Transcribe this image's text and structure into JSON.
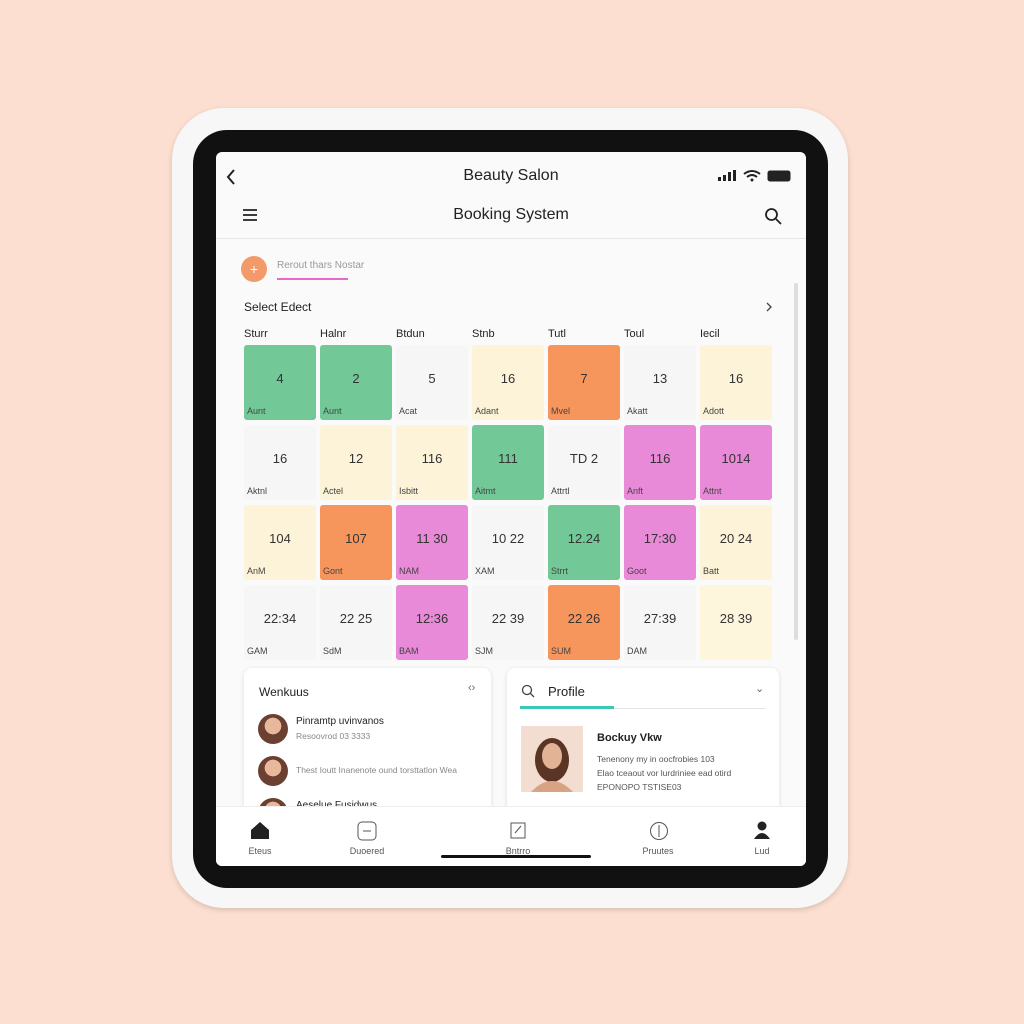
{
  "status_bar": {
    "title": "Beauty Salon"
  },
  "header": {
    "title": "Booking System"
  },
  "search": {
    "placeholder": "Rerout thars Nostar"
  },
  "calendar": {
    "title": "Select Edect",
    "columns": [
      "Sturr",
      "Halnr",
      "Btdun",
      "Stnb",
      "Tutl",
      "Toul",
      "Iecil"
    ],
    "rows": [
      [
        {
          "value": "4",
          "label": "Aunt",
          "color": "#72c896"
        },
        {
          "value": "2",
          "label": "Aunt",
          "color": "#72c896"
        },
        {
          "value": "5",
          "label": "Acat",
          "color": "#f6f6f6"
        },
        {
          "value": "16",
          "label": "Adant",
          "color": "#fdf3d8"
        },
        {
          "value": "7",
          "label": "Mvel",
          "color": "#f6955c"
        },
        {
          "value": "13",
          "label": "Akatt",
          "color": "#f6f6f6"
        },
        {
          "value": "16",
          "label": "Adott",
          "color": "#fdf3d8"
        }
      ],
      [
        {
          "value": "16",
          "label": "Aktnl",
          "color": "#f6f6f6"
        },
        {
          "value": "12",
          "label": "Actel",
          "color": "#fdf3d8"
        },
        {
          "value": "116",
          "label": "Isbitt",
          "color": "#fdf3d8"
        },
        {
          "value": "111",
          "label": "Aitmt",
          "color": "#72c896"
        },
        {
          "value": "TD 2",
          "label": "Attrtl",
          "color": "#f6f6f6"
        },
        {
          "value": "116",
          "label": "Anft",
          "color": "#e88ad8"
        },
        {
          "value": "1014",
          "label": "Attnt",
          "color": "#e88ad8"
        }
      ],
      [
        {
          "value": "104",
          "label": "AnM",
          "color": "#fdf3d8"
        },
        {
          "value": "107",
          "label": "Gont",
          "color": "#f6955c"
        },
        {
          "value": "11 30",
          "label": "NAM",
          "color": "#e88ad8"
        },
        {
          "value": "10 22",
          "label": "XAM",
          "color": "#f6f6f6"
        },
        {
          "value": "12.24",
          "label": "Strrt",
          "color": "#72c896"
        },
        {
          "value": "17:30",
          "label": "Goot",
          "color": "#e88ad8"
        },
        {
          "value": "20 24",
          "label": "Batt",
          "color": "#fdf3d8"
        }
      ],
      [
        {
          "value": "22:34",
          "label": "GAM",
          "color": "#f6f6f6"
        },
        {
          "value": "22 25",
          "label": "SdM",
          "color": "#f6f6f6"
        },
        {
          "value": "12:36",
          "label": "BAM",
          "color": "#e88ad8"
        },
        {
          "value": "22 39",
          "label": "SJM",
          "color": "#f6f6f6"
        },
        {
          "value": "22 26",
          "label": "SUM",
          "color": "#f6955c"
        },
        {
          "value": "27:39",
          "label": "DAM",
          "color": "#f6f6f6"
        },
        {
          "value": "28 39",
          "label": "",
          "color": "#fdf6dc"
        }
      ]
    ]
  },
  "weekly": {
    "title": "Wenkuus",
    "items": [
      {
        "title": "Pinramtp uvinvanos",
        "subtitle": "Resoovrod 03 3333"
      },
      {
        "subtitle": "Thest Ioutt Inanenote ound torsttatlon Wea"
      },
      {
        "title": "Aeselue Fusidwus"
      }
    ]
  },
  "profile": {
    "title": "Profile",
    "name": "Bockuy Vkw",
    "lines": [
      "Tenenony my in oocfrobies 103",
      "Elao tceaout vor lurdriniee ead otird",
      "EPONOPO TSTISE03"
    ]
  },
  "nav": [
    "Eteus",
    "Duoered",
    "Bntrro",
    "Pruutes",
    "Lud"
  ]
}
